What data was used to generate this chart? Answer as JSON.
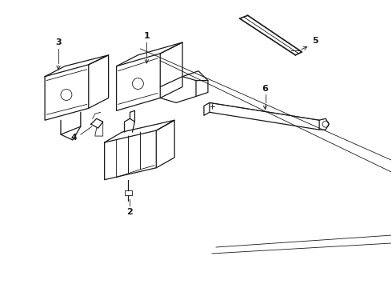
{
  "bg_color": "#ffffff",
  "line_color": "#1a1a1a",
  "lw_main": 0.9,
  "lw_thin": 0.6,
  "label_fs": 8,
  "parts_labels": [
    "1",
    "2",
    "3",
    "4",
    "5",
    "6"
  ]
}
